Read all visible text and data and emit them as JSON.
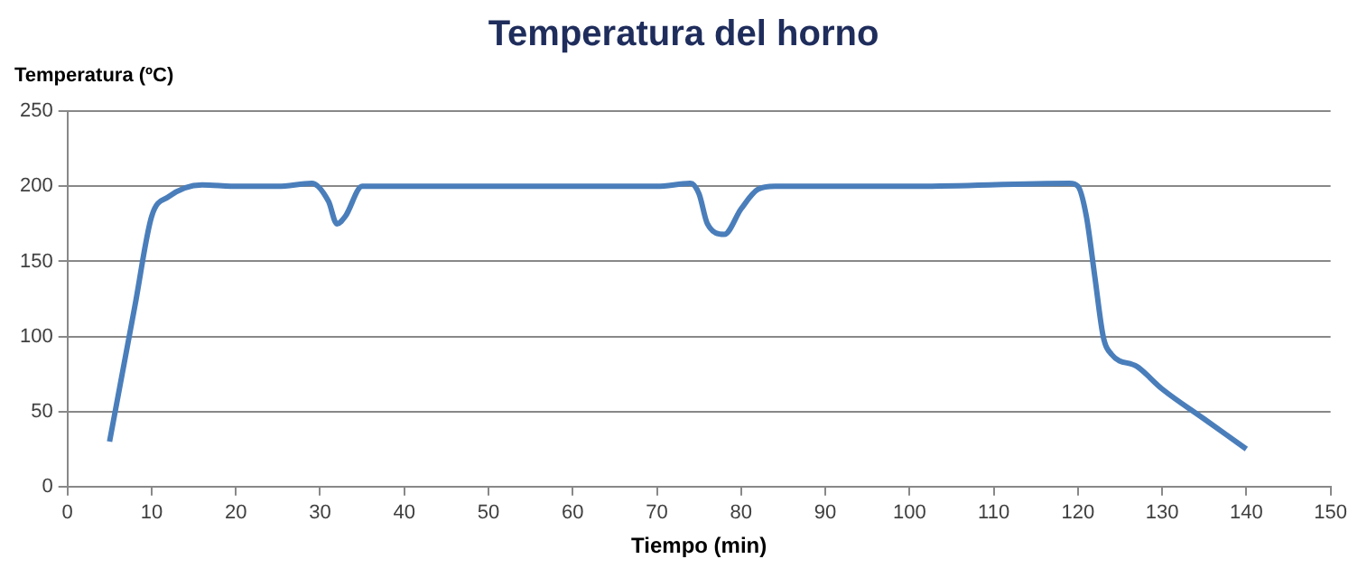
{
  "chart_data": {
    "type": "line",
    "title": "Temperatura del horno",
    "xlabel": "Tiempo (min)",
    "ylabel": "Temperatura (ºC)",
    "xlim": [
      0,
      150
    ],
    "xticks": [
      0,
      10,
      20,
      30,
      40,
      50,
      60,
      70,
      80,
      90,
      100,
      110,
      120,
      130,
      140,
      150
    ],
    "ylim": [
      0,
      250
    ],
    "yticks": [
      0,
      50,
      100,
      150,
      200,
      250
    ],
    "grid": "y",
    "legend": false,
    "marker": "none",
    "line_style": "solid",
    "series": [
      {
        "color": "#4a7ebb",
        "x": [
          5,
          8,
          10,
          12,
          16,
          20,
          25,
          29,
          31,
          32,
          33,
          35,
          40,
          70,
          74,
          75,
          76,
          78,
          80,
          82,
          84,
          100,
          119,
          120,
          121,
          122,
          123,
          124,
          127,
          130,
          135,
          140
        ],
        "values": [
          30,
          120,
          180,
          193,
          201,
          200,
          200,
          202,
          190,
          175,
          180,
          200,
          200,
          200,
          202,
          195,
          175,
          168,
          185,
          198,
          200,
          200,
          202,
          200,
          180,
          140,
          100,
          88,
          80,
          65,
          45,
          25
        ]
      }
    ]
  }
}
